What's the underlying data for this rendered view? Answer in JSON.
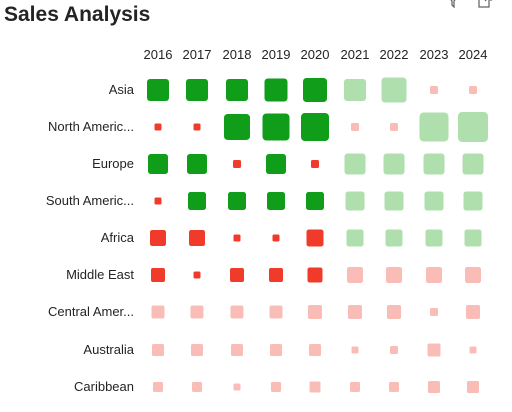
{
  "visual": {
    "title": "Sales Analysis"
  },
  "icons": {
    "filter": "filter-icon",
    "focus": "focus-mode-icon"
  },
  "colors": {
    "positive_strong": "#0f9d1a",
    "positive_light": "#aedfad",
    "negative_strong": "#f03a2a",
    "negative_light": "#f9bcb6"
  },
  "chart_data": {
    "type": "heatmap",
    "title": "Sales Analysis",
    "encoding": "square size shows magnitude; green = positive, red = negative; light shade = forecast/secondary",
    "years": [
      "2016",
      "2017",
      "2018",
      "2019",
      "2020",
      "2021",
      "2022",
      "2023",
      "2024"
    ],
    "regions": [
      "Asia",
      "North Americ...",
      "Europe",
      "South Americ...",
      "Africa",
      "Middle East",
      "Central Amer...",
      "Australia",
      "Caribbean"
    ],
    "cells": [
      [
        [
          22,
          "G"
        ],
        [
          22,
          "G"
        ],
        [
          22,
          "G"
        ],
        [
          23,
          "G"
        ],
        [
          24,
          "G"
        ],
        [
          22,
          "LG"
        ],
        [
          25,
          "LG"
        ],
        [
          8,
          "LR"
        ],
        [
          8,
          "LR"
        ]
      ],
      [
        [
          7,
          "R"
        ],
        [
          7,
          "R"
        ],
        [
          26,
          "G"
        ],
        [
          27,
          "G"
        ],
        [
          28,
          "G"
        ],
        [
          8,
          "LR"
        ],
        [
          8,
          "LR"
        ],
        [
          29,
          "LG"
        ],
        [
          30,
          "LG"
        ]
      ],
      [
        [
          20,
          "G"
        ],
        [
          20,
          "G"
        ],
        [
          8,
          "R"
        ],
        [
          20,
          "G"
        ],
        [
          8,
          "R"
        ],
        [
          21,
          "LG"
        ],
        [
          21,
          "LG"
        ],
        [
          21,
          "LG"
        ],
        [
          21,
          "LG"
        ]
      ],
      [
        [
          7,
          "R"
        ],
        [
          18,
          "G"
        ],
        [
          18,
          "G"
        ],
        [
          18,
          "G"
        ],
        [
          18,
          "G"
        ],
        [
          19,
          "LG"
        ],
        [
          19,
          "LG"
        ],
        [
          19,
          "LG"
        ],
        [
          19,
          "LG"
        ]
      ],
      [
        [
          16,
          "R"
        ],
        [
          16,
          "R"
        ],
        [
          7,
          "R"
        ],
        [
          7,
          "R"
        ],
        [
          17,
          "R"
        ],
        [
          17,
          "LG"
        ],
        [
          17,
          "LG"
        ],
        [
          17,
          "LG"
        ],
        [
          17,
          "LG"
        ]
      ],
      [
        [
          14,
          "R"
        ],
        [
          7,
          "R"
        ],
        [
          14,
          "R"
        ],
        [
          14,
          "R"
        ],
        [
          15,
          "R"
        ],
        [
          16,
          "LR"
        ],
        [
          16,
          "LR"
        ],
        [
          16,
          "LR"
        ],
        [
          16,
          "LR"
        ]
      ],
      [
        [
          13,
          "LR"
        ],
        [
          13,
          "LR"
        ],
        [
          13,
          "LR"
        ],
        [
          13,
          "LR"
        ],
        [
          14,
          "LR"
        ],
        [
          14,
          "LR"
        ],
        [
          14,
          "LR"
        ],
        [
          8,
          "LR"
        ],
        [
          14,
          "LR"
        ]
      ],
      [
        [
          12,
          "LR"
        ],
        [
          12,
          "LR"
        ],
        [
          12,
          "LR"
        ],
        [
          12,
          "LR"
        ],
        [
          12,
          "LR"
        ],
        [
          7,
          "LR"
        ],
        [
          8,
          "LR"
        ],
        [
          13,
          "LR"
        ],
        [
          7,
          "LR"
        ]
      ],
      [
        [
          10,
          "LR"
        ],
        [
          10,
          "LR"
        ],
        [
          7,
          "LR"
        ],
        [
          10,
          "LR"
        ],
        [
          11,
          "LR"
        ],
        [
          10,
          "LR"
        ],
        [
          10,
          "LR"
        ],
        [
          12,
          "LR"
        ],
        [
          12,
          "LR"
        ]
      ]
    ]
  }
}
